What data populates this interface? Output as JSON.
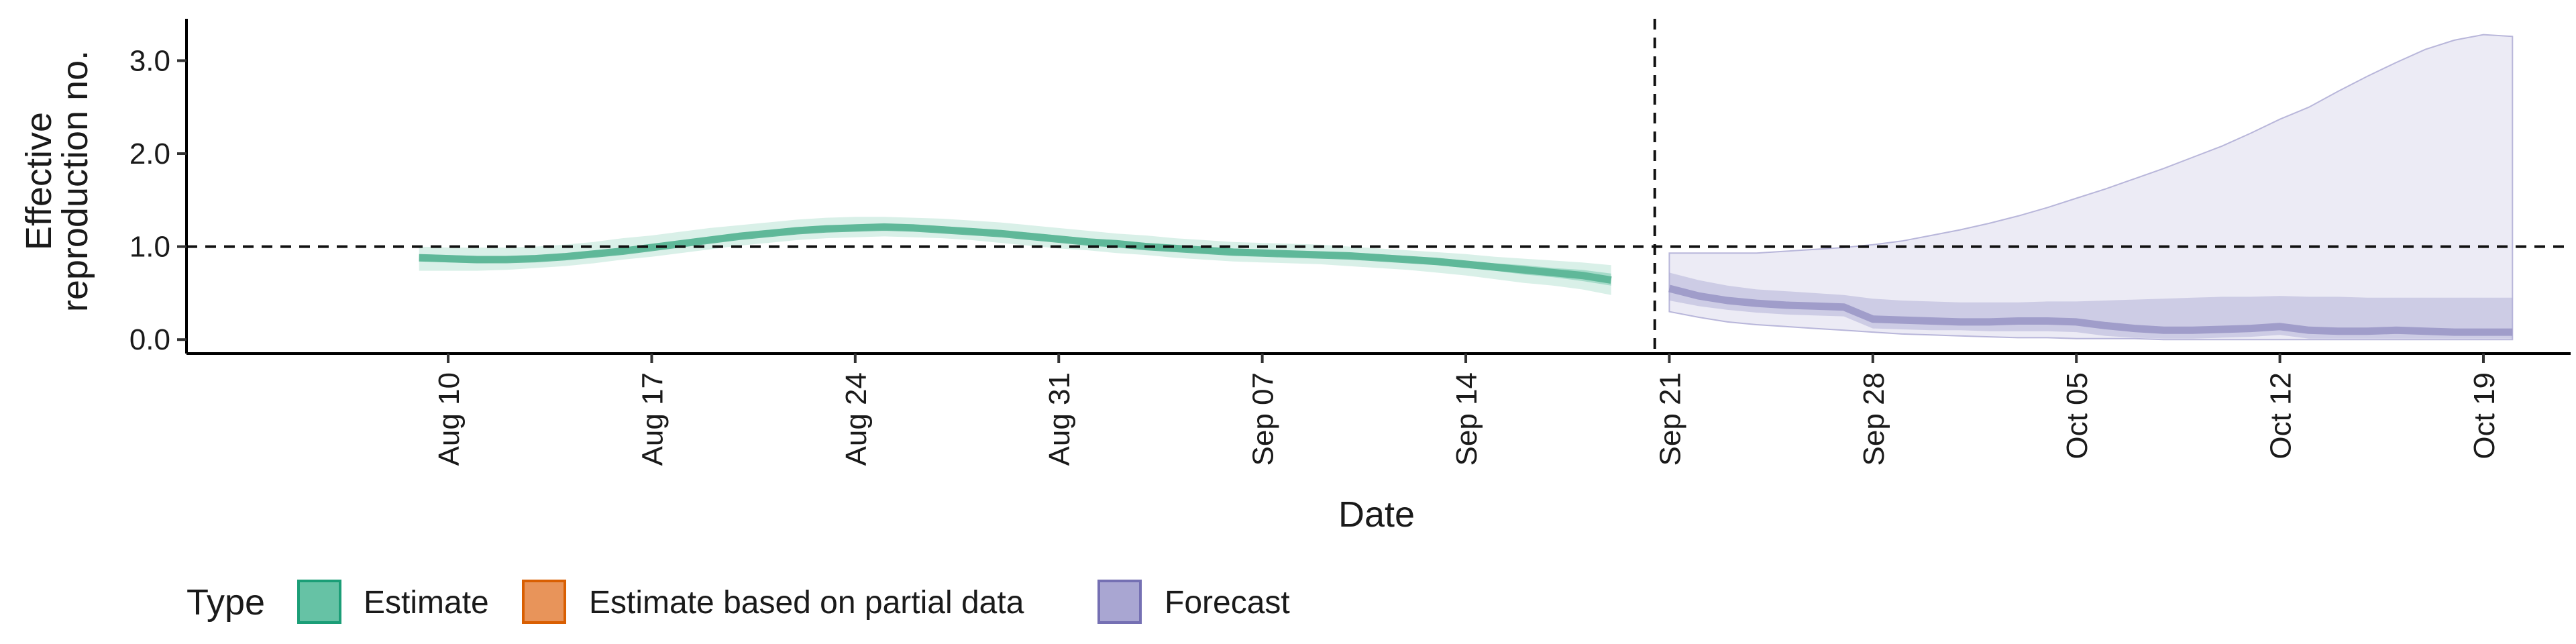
{
  "chart_data": {
    "type": "area",
    "title": "",
    "xlabel": "Date",
    "ylabel_lines": [
      "Effective",
      "reproduction no."
    ],
    "x_start": "Aug 10",
    "xlim": [
      "2020-08-01",
      "2020-10-22"
    ],
    "ylim": [
      -0.15,
      3.45
    ],
    "yticks": [
      0.0,
      1.0,
      2.0,
      3.0
    ],
    "ytick_labels": [
      "0.0",
      "1.0",
      "2.0",
      "3.0"
    ],
    "xticks": [
      "2020-08-10",
      "2020-08-17",
      "2020-08-24",
      "2020-08-31",
      "2020-09-07",
      "2020-09-14",
      "2020-09-21",
      "2020-09-28",
      "2020-10-05",
      "2020-10-12",
      "2020-10-19"
    ],
    "xtick_labels": [
      "Aug 10",
      "Aug 17",
      "Aug 24",
      "Aug 31",
      "Sep 07",
      "Sep 14",
      "Sep 21",
      "Sep 28",
      "Oct 05",
      "Oct 12",
      "Oct 19"
    ],
    "reference_line_y": 1.0,
    "forecast_start": "2020-09-20",
    "grid": false,
    "legend": {
      "title": "Type",
      "position": "bottom",
      "items": [
        {
          "label": "Estimate",
          "fill": "#66c2a5",
          "stroke": "#1b9e77"
        },
        {
          "label": "Estimate based on partial data",
          "fill": "#e8945a",
          "stroke": "#d95f02"
        },
        {
          "label": "Forecast",
          "fill": "#a9a6d2",
          "stroke": "#7570b3"
        }
      ]
    },
    "series": [
      {
        "name": "Estimate",
        "color": "#1b9e77",
        "x": [
          "2020-08-09",
          "2020-08-10",
          "2020-08-11",
          "2020-08-12",
          "2020-08-13",
          "2020-08-14",
          "2020-08-15",
          "2020-08-16",
          "2020-08-17",
          "2020-08-18",
          "2020-08-19",
          "2020-08-20",
          "2020-08-21",
          "2020-08-22",
          "2020-08-23",
          "2020-08-24",
          "2020-08-25",
          "2020-08-26",
          "2020-08-27",
          "2020-08-28",
          "2020-08-29",
          "2020-08-30",
          "2020-08-31",
          "2020-09-01",
          "2020-09-02",
          "2020-09-03",
          "2020-09-04",
          "2020-09-05",
          "2020-09-06",
          "2020-09-07",
          "2020-09-08",
          "2020-09-09",
          "2020-09-10",
          "2020-09-11",
          "2020-09-12",
          "2020-09-13",
          "2020-09-14",
          "2020-09-15",
          "2020-09-16",
          "2020-09-17",
          "2020-09-18",
          "2020-09-19"
        ],
        "median": [
          0.88,
          0.87,
          0.86,
          0.86,
          0.87,
          0.89,
          0.92,
          0.95,
          0.99,
          1.03,
          1.07,
          1.11,
          1.14,
          1.17,
          1.19,
          1.2,
          1.21,
          1.2,
          1.18,
          1.16,
          1.14,
          1.11,
          1.08,
          1.05,
          1.03,
          1.0,
          0.98,
          0.96,
          0.94,
          0.93,
          0.92,
          0.91,
          0.9,
          0.88,
          0.86,
          0.84,
          0.81,
          0.78,
          0.75,
          0.72,
          0.69,
          0.64
        ],
        "ci50_low": [
          0.84,
          0.83,
          0.82,
          0.83,
          0.84,
          0.86,
          0.89,
          0.92,
          0.96,
          1.0,
          1.04,
          1.08,
          1.11,
          1.14,
          1.16,
          1.17,
          1.18,
          1.17,
          1.15,
          1.13,
          1.11,
          1.08,
          1.05,
          1.02,
          1.0,
          0.97,
          0.95,
          0.93,
          0.91,
          0.9,
          0.89,
          0.88,
          0.87,
          0.85,
          0.83,
          0.8,
          0.77,
          0.74,
          0.7,
          0.67,
          0.63,
          0.58
        ],
        "ci50_high": [
          0.92,
          0.91,
          0.9,
          0.9,
          0.91,
          0.93,
          0.96,
          0.99,
          1.03,
          1.07,
          1.11,
          1.15,
          1.18,
          1.21,
          1.23,
          1.24,
          1.25,
          1.24,
          1.22,
          1.2,
          1.18,
          1.15,
          1.12,
          1.09,
          1.07,
          1.04,
          1.02,
          1.0,
          0.98,
          0.97,
          0.96,
          0.95,
          0.94,
          0.92,
          0.9,
          0.88,
          0.85,
          0.82,
          0.8,
          0.77,
          0.75,
          0.71
        ],
        "ci90_low": [
          0.74,
          0.74,
          0.74,
          0.75,
          0.77,
          0.79,
          0.82,
          0.86,
          0.89,
          0.93,
          0.97,
          1.01,
          1.04,
          1.07,
          1.09,
          1.1,
          1.11,
          1.1,
          1.09,
          1.07,
          1.04,
          1.01,
          0.98,
          0.96,
          0.93,
          0.91,
          0.88,
          0.86,
          0.84,
          0.83,
          0.82,
          0.81,
          0.79,
          0.77,
          0.75,
          0.72,
          0.69,
          0.65,
          0.61,
          0.58,
          0.54,
          0.48
        ],
        "ci90_high": [
          1.0,
          0.99,
          0.99,
          0.99,
          1.0,
          1.02,
          1.05,
          1.09,
          1.12,
          1.16,
          1.2,
          1.23,
          1.26,
          1.29,
          1.31,
          1.32,
          1.32,
          1.31,
          1.3,
          1.28,
          1.26,
          1.23,
          1.2,
          1.17,
          1.14,
          1.12,
          1.09,
          1.07,
          1.05,
          1.04,
          1.03,
          1.02,
          1.0,
          0.98,
          0.96,
          0.94,
          0.92,
          0.89,
          0.87,
          0.85,
          0.83,
          0.8
        ]
      },
      {
        "name": "Forecast",
        "color": "#7570b3",
        "x": [
          "2020-09-21",
          "2020-09-22",
          "2020-09-23",
          "2020-09-24",
          "2020-09-25",
          "2020-09-26",
          "2020-09-27",
          "2020-09-28",
          "2020-09-29",
          "2020-09-30",
          "2020-10-01",
          "2020-10-02",
          "2020-10-03",
          "2020-10-04",
          "2020-10-05",
          "2020-10-06",
          "2020-10-07",
          "2020-10-08",
          "2020-10-09",
          "2020-10-10",
          "2020-10-11",
          "2020-10-12",
          "2020-10-13",
          "2020-10-14",
          "2020-10-15",
          "2020-10-16",
          "2020-10-17",
          "2020-10-18",
          "2020-10-19",
          "2020-10-20"
        ],
        "median": [
          0.55,
          0.47,
          0.42,
          0.39,
          0.37,
          0.36,
          0.35,
          0.22,
          0.21,
          0.2,
          0.19,
          0.19,
          0.2,
          0.2,
          0.19,
          0.15,
          0.12,
          0.1,
          0.1,
          0.11,
          0.12,
          0.14,
          0.1,
          0.09,
          0.09,
          0.1,
          0.09,
          0.08,
          0.08,
          0.08
        ],
        "ci50_low": [
          0.42,
          0.36,
          0.32,
          0.29,
          0.27,
          0.26,
          0.25,
          0.12,
          0.11,
          0.1,
          0.1,
          0.09,
          0.09,
          0.09,
          0.08,
          0.04,
          0.02,
          0.01,
          0.01,
          0.02,
          0.03,
          0.05,
          0.01,
          0.01,
          0.01,
          0.01,
          0.01,
          0.01,
          0.01,
          0.01
        ],
        "ci50_high": [
          0.72,
          0.64,
          0.58,
          0.54,
          0.52,
          0.5,
          0.48,
          0.44,
          0.42,
          0.41,
          0.4,
          0.4,
          0.4,
          0.41,
          0.41,
          0.42,
          0.43,
          0.44,
          0.45,
          0.46,
          0.46,
          0.47,
          0.46,
          0.46,
          0.45,
          0.45,
          0.45,
          0.45,
          0.45,
          0.45
        ],
        "ci90_low": [
          0.3,
          0.24,
          0.19,
          0.16,
          0.14,
          0.12,
          0.1,
          0.08,
          0.06,
          0.05,
          0.04,
          0.03,
          0.02,
          0.02,
          0.01,
          0.01,
          0.01,
          0.0,
          0.0,
          0.0,
          0.0,
          0.0,
          0.0,
          0.0,
          0.0,
          0.0,
          0.0,
          0.0,
          0.0,
          0.0
        ],
        "ci90_high": [
          0.93,
          0.93,
          0.93,
          0.93,
          0.95,
          0.97,
          0.99,
          1.02,
          1.06,
          1.12,
          1.18,
          1.25,
          1.33,
          1.42,
          1.52,
          1.62,
          1.73,
          1.84,
          1.96,
          2.08,
          2.22,
          2.37,
          2.5,
          2.67,
          2.83,
          2.98,
          3.12,
          3.22,
          3.28,
          3.26
        ]
      }
    ]
  }
}
